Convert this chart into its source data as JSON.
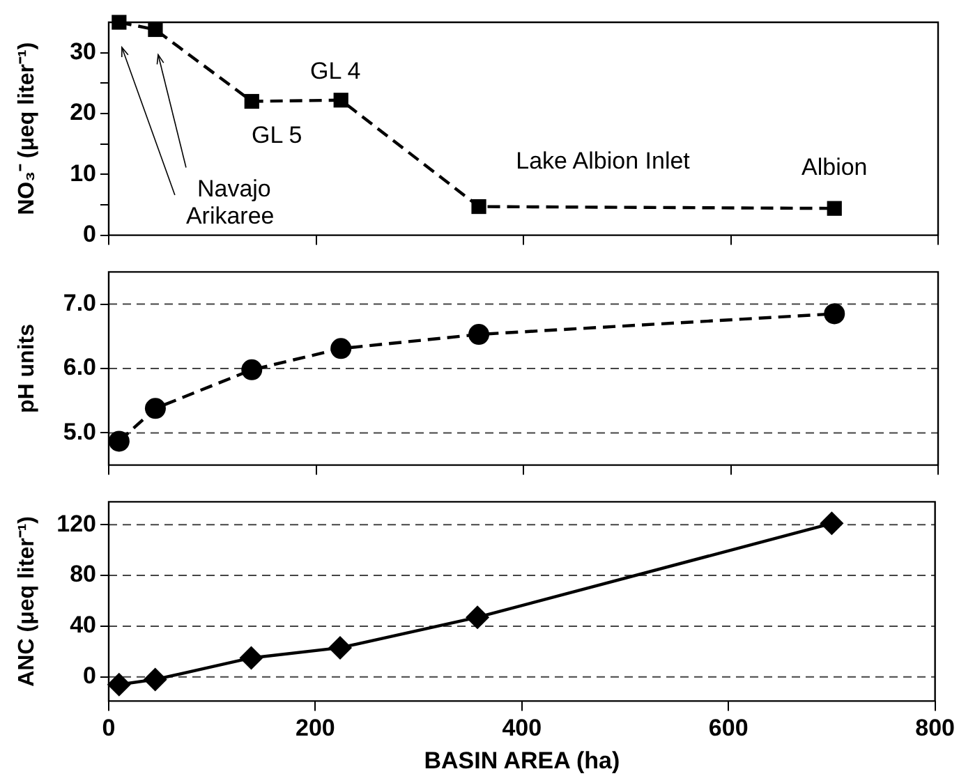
{
  "chart_data": [
    {
      "type": "line",
      "ylabel": "NO₃⁻ (μeq liter⁻¹)",
      "x": [
        10,
        45,
        138,
        224,
        357,
        700
      ],
      "series": [
        {
          "color": "#000000",
          "values": [
            35,
            33.8,
            22,
            22.2,
            4.7,
            4.4
          ]
        }
      ],
      "xlim": [
        0,
        800
      ],
      "xticks": [
        0,
        200,
        400,
        600,
        800
      ],
      "ylim": [
        0,
        35
      ],
      "yticks": [
        0,
        {
          "value": 5,
          "label": null
        },
        10,
        {
          "value": 15,
          "label": null
        },
        20,
        {
          "value": 25,
          "label": null
        },
        30
      ],
      "tick_labels": "y",
      "marker": "square",
      "line_style": "dashed",
      "grid": false,
      "annotations": [
        "Arikaree",
        "Navajo",
        {
          "text": "GL 5",
          "x": 138,
          "y": 22
        },
        {
          "text": "GL 4",
          "x": 224,
          "y": 22.2
        },
        {
          "text": "Lake Albion Inlet",
          "x": 357,
          "y": 4.7
        },
        {
          "text": "Albion",
          "x": 700,
          "y": 4.4
        }
      ]
    },
    {
      "type": "line",
      "ylabel": "pH units",
      "x": [
        10,
        45,
        138,
        224,
        357,
        700
      ],
      "series": [
        {
          "color": "#000000",
          "values": [
            4.87,
            5.38,
            5.98,
            6.31,
            6.53,
            6.85
          ]
        }
      ],
      "xlim": [
        0,
        800
      ],
      "xticks": [
        0,
        200,
        400,
        600,
        800
      ],
      "ylim": [
        4.5,
        7.5
      ],
      "yticks": [
        {
          "value": 5,
          "label": "5.0"
        },
        {
          "value": 6,
          "label": "6.0"
        },
        {
          "value": 7,
          "label": "7.0"
        }
      ],
      "tick_labels": "y",
      "marker": "circle",
      "line_style": "dashed",
      "grid": "y"
    },
    {
      "type": "line",
      "ylabel": "ANC (μeq liter⁻¹)",
      "xlabel": "BASIN AREA (ha)",
      "x": [
        10,
        45,
        138,
        224,
        357,
        700
      ],
      "series": [
        {
          "color": "#000000",
          "values": [
            -6,
            -2,
            15,
            23,
            47,
            121
          ]
        }
      ],
      "xlim": [
        0,
        800
      ],
      "xticks": [
        0,
        200,
        400,
        600,
        800
      ],
      "ylim": [
        -19,
        138
      ],
      "yticks": [
        0,
        40,
        80,
        120
      ],
      "marker": "diamond",
      "line_style": "solid",
      "grid": "y"
    }
  ]
}
